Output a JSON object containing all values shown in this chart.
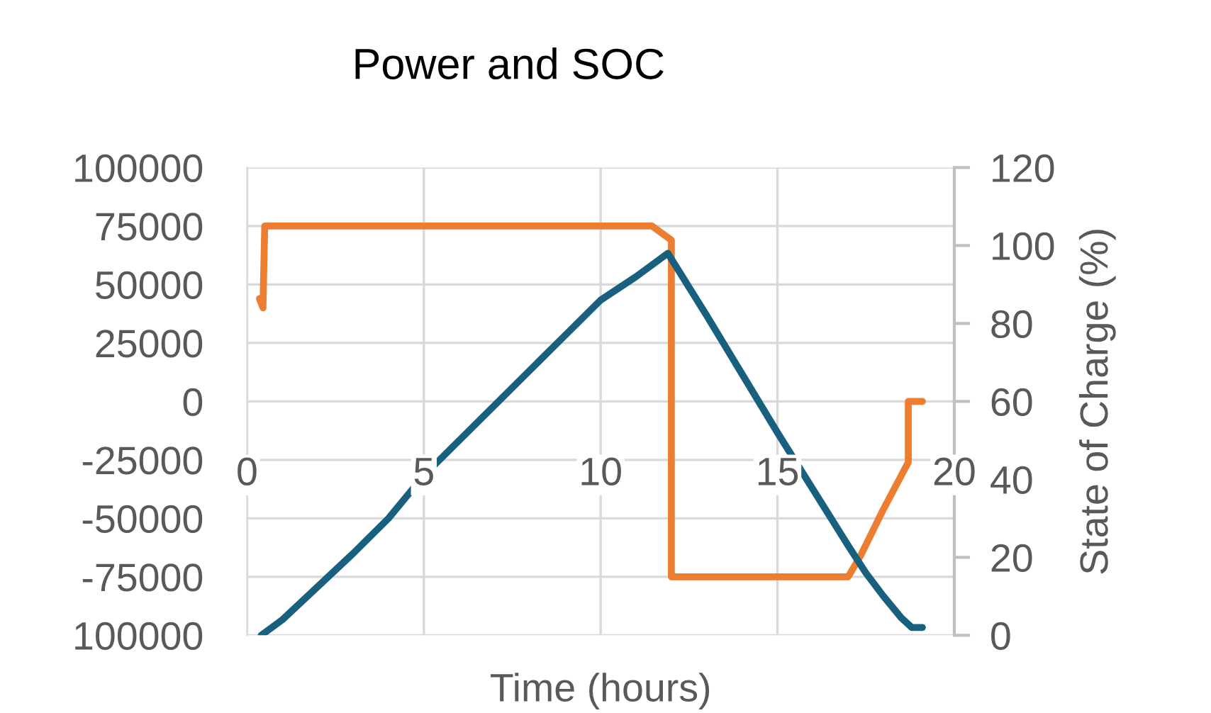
{
  "chart_data": {
    "type": "line",
    "title": "Power and SOC",
    "xlabel": "Time (hours)",
    "y2label": "State of Charge (%)",
    "xlim": [
      0,
      20
    ],
    "xticks": [
      0,
      5,
      10,
      15,
      20
    ],
    "ylim": [
      -100000,
      100000
    ],
    "yticks": [
      {
        "value": -100000,
        "label": "100000"
      },
      -75000,
      -50000,
      -25000,
      0,
      25000,
      50000,
      75000,
      100000
    ],
    "y2lim": [
      0,
      120
    ],
    "y2ticks": [
      0,
      20,
      40,
      60,
      80,
      100,
      120
    ],
    "grid": true,
    "legend": false,
    "marker": "none",
    "line_style": "solid",
    "series": [
      {
        "color": "#ed7d31",
        "x": [
          0.35,
          0.45,
          0.5,
          11.45,
          12.0,
          12.0,
          17.0,
          17.35,
          18.0,
          18.7,
          18.7,
          19.1
        ],
        "values": [
          44000,
          40000,
          75000,
          75000,
          69000,
          -75000,
          -75000,
          -66000,
          -46000,
          -26000,
          0,
          0
        ]
      },
      {
        "color": "#19607f",
        "axis": "y2",
        "x": [
          0.4,
          1,
          2,
          3,
          4,
          5,
          6,
          7,
          8,
          9,
          10,
          11,
          11.9,
          13,
          14,
          15,
          16,
          17,
          17.5,
          18,
          18.5,
          18.8,
          19.1
        ],
        "values": [
          0,
          4,
          12.5,
          21,
          30,
          41,
          50,
          59,
          68,
          77,
          86,
          92,
          98,
          82,
          67,
          52,
          37.5,
          23,
          16,
          10,
          4.5,
          2,
          2
        ]
      }
    ]
  }
}
